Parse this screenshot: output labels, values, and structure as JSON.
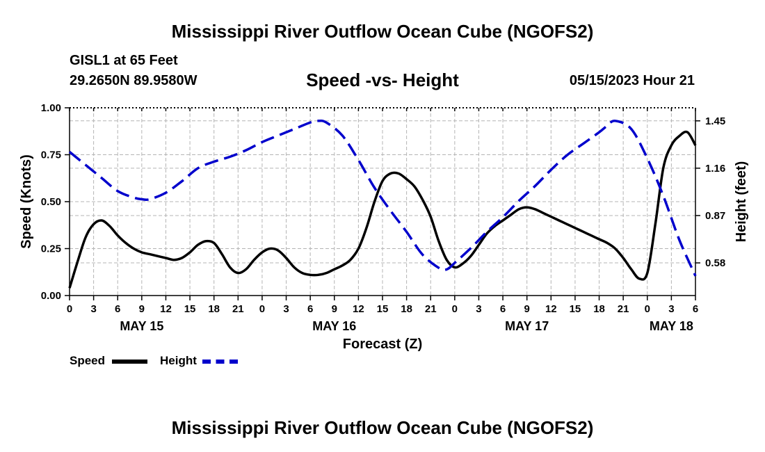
{
  "page": {
    "title": "Mississippi River Outflow Ocean Cube (NGOFS2)",
    "station": "GISL1 at 65 Feet",
    "coords": "29.2650N  89.9580W",
    "subtitle": "Speed -vs- Height",
    "datetime": "05/15/2023 Hour 21",
    "footer_title": "Mississippi River Outflow Ocean Cube (NGOFS2)"
  },
  "legend": {
    "speed_label": "Speed",
    "height_label": "Height"
  },
  "colors": {
    "speed": "#000000",
    "height": "#0000cc",
    "grid": "#b4b4b4"
  },
  "chart_data": {
    "type": "line",
    "title": "Speed -vs- Height",
    "xlabel": "Forecast (Z)",
    "ylabel": "Speed (Knots)",
    "y2label": "Height (feet)",
    "xlim": [
      0,
      78
    ],
    "ylim": [
      0,
      1.0
    ],
    "y2lim": [
      0.38,
      1.53
    ],
    "x_ticks": [
      0,
      3,
      6,
      9,
      12,
      15,
      18,
      21,
      24,
      27,
      30,
      33,
      36,
      39,
      42,
      45,
      48,
      51,
      54,
      57,
      60,
      63,
      66,
      69,
      72,
      75,
      78
    ],
    "x_tick_labels": [
      "0",
      "3",
      "6",
      "9",
      "12",
      "15",
      "18",
      "21",
      "0",
      "3",
      "6",
      "9",
      "12",
      "15",
      "18",
      "21",
      "0",
      "3",
      "6",
      "9",
      "12",
      "15",
      "18",
      "21",
      "0",
      "3",
      "6"
    ],
    "date_labels": [
      {
        "x": 9,
        "text": "MAY 15"
      },
      {
        "x": 33,
        "text": "MAY 16"
      },
      {
        "x": 57,
        "text": "MAY 17"
      },
      {
        "x": 75,
        "text": "MAY 18"
      }
    ],
    "y_ticks": [
      0.0,
      0.25,
      0.5,
      0.75,
      1.0
    ],
    "y_tick_labels": [
      "0.00",
      "0.25",
      "0.50",
      "0.75",
      "1.00"
    ],
    "y2_ticks": [
      0.58,
      0.87,
      1.16,
      1.45
    ],
    "y2_tick_labels": [
      "0.58",
      "0.87",
      "1.16",
      "1.45"
    ],
    "grid": true,
    "series": [
      {
        "name": "Speed",
        "axis": "left",
        "style": "solid",
        "x": [
          0,
          1,
          2,
          3,
          4,
          5,
          6,
          7,
          8,
          9,
          10,
          11,
          12,
          13,
          14,
          15,
          16,
          17,
          18,
          19,
          20,
          21,
          22,
          23,
          24,
          25,
          26,
          27,
          28,
          29,
          30,
          31,
          32,
          33,
          34,
          35,
          36,
          37,
          38,
          39,
          40,
          41,
          42,
          43,
          44,
          45,
          46,
          47,
          48,
          49,
          50,
          51,
          52,
          53,
          54,
          55,
          56,
          57,
          58,
          59,
          60,
          61,
          62,
          63,
          64,
          65,
          66,
          67,
          68,
          69,
          70,
          71,
          72,
          73,
          74,
          75,
          76,
          77,
          78
        ],
        "values": [
          0.04,
          0.18,
          0.31,
          0.38,
          0.4,
          0.37,
          0.32,
          0.28,
          0.25,
          0.23,
          0.22,
          0.21,
          0.2,
          0.19,
          0.2,
          0.23,
          0.27,
          0.29,
          0.28,
          0.22,
          0.15,
          0.12,
          0.14,
          0.19,
          0.23,
          0.25,
          0.24,
          0.2,
          0.15,
          0.12,
          0.11,
          0.11,
          0.12,
          0.14,
          0.16,
          0.19,
          0.25,
          0.36,
          0.5,
          0.61,
          0.65,
          0.65,
          0.62,
          0.58,
          0.51,
          0.42,
          0.29,
          0.19,
          0.15,
          0.17,
          0.21,
          0.27,
          0.33,
          0.37,
          0.4,
          0.43,
          0.46,
          0.47,
          0.46,
          0.44,
          0.42,
          0.4,
          0.38,
          0.36,
          0.34,
          0.32,
          0.3,
          0.28,
          0.25,
          0.2,
          0.14,
          0.09,
          0.12,
          0.38,
          0.68,
          0.8,
          0.85,
          0.87,
          0.8
        ]
      },
      {
        "name": "Height",
        "axis": "right",
        "style": "dashed",
        "x": [
          0,
          2,
          4,
          6,
          8,
          9,
          10,
          12,
          14,
          16,
          18,
          20,
          22,
          24,
          26,
          28,
          30,
          31,
          32,
          34,
          36,
          38,
          40,
          42,
          44,
          46,
          47,
          48,
          50,
          52,
          54,
          56,
          58,
          60,
          62,
          64,
          66,
          67,
          68,
          70,
          72,
          74,
          76,
          78
        ],
        "values": [
          1.26,
          1.18,
          1.1,
          1.02,
          0.98,
          0.97,
          0.97,
          1.01,
          1.08,
          1.16,
          1.2,
          1.23,
          1.27,
          1.32,
          1.36,
          1.4,
          1.44,
          1.45,
          1.44,
          1.36,
          1.21,
          1.04,
          0.9,
          0.77,
          0.63,
          0.55,
          0.54,
          0.58,
          0.67,
          0.77,
          0.86,
          0.96,
          1.05,
          1.15,
          1.24,
          1.31,
          1.38,
          1.42,
          1.45,
          1.4,
          1.22,
          0.99,
          0.72,
          0.5
        ]
      }
    ]
  }
}
